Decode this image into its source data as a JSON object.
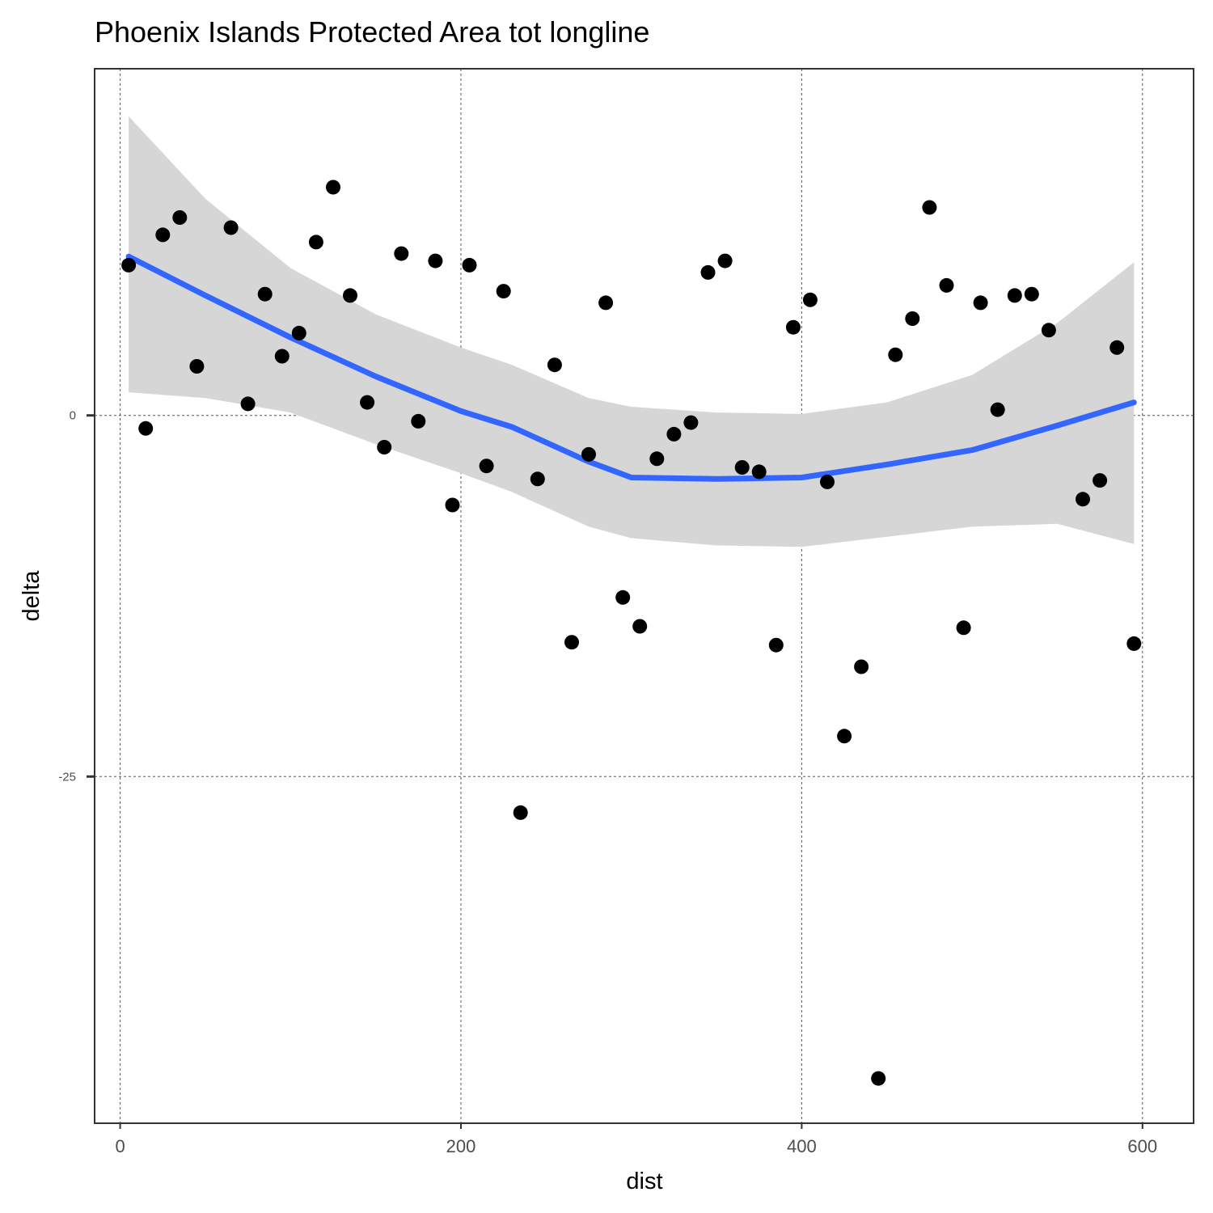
{
  "chart_data": {
    "type": "scatter",
    "title": "Phoenix Islands Protected Area tot longline",
    "xlabel": "dist",
    "ylabel": "delta",
    "xlim": [
      -15,
      630
    ],
    "ylim": [
      -49,
      24
    ],
    "x_ticks": [
      0,
      200,
      400,
      600
    ],
    "x_tick_labels": [
      "0",
      "200",
      "400",
      "600"
    ],
    "y_ticks": [
      0,
      -25
    ],
    "y_tick_labels": [
      "0",
      "-25"
    ],
    "grid": true,
    "legend": "none",
    "points": [
      {
        "x": 5,
        "y": 10.4
      },
      {
        "x": 15,
        "y": -0.9
      },
      {
        "x": 25,
        "y": 12.5
      },
      {
        "x": 35,
        "y": 13.7
      },
      {
        "x": 45,
        "y": 3.4
      },
      {
        "x": 65,
        "y": 13.0
      },
      {
        "x": 75,
        "y": 0.8
      },
      {
        "x": 85,
        "y": 8.4
      },
      {
        "x": 95,
        "y": 4.1
      },
      {
        "x": 105,
        "y": 5.7
      },
      {
        "x": 115,
        "y": 12.0
      },
      {
        "x": 125,
        "y": 15.8
      },
      {
        "x": 135,
        "y": 8.3
      },
      {
        "x": 145,
        "y": 0.9
      },
      {
        "x": 155,
        "y": -2.2
      },
      {
        "x": 165,
        "y": 11.2
      },
      {
        "x": 175,
        "y": -0.4
      },
      {
        "x": 185,
        "y": 10.7
      },
      {
        "x": 195,
        "y": -6.2
      },
      {
        "x": 205,
        "y": 10.4
      },
      {
        "x": 215,
        "y": -3.5
      },
      {
        "x": 225,
        "y": 8.6
      },
      {
        "x": 235,
        "y": -27.5
      },
      {
        "x": 245,
        "y": -4.4
      },
      {
        "x": 255,
        "y": 3.5
      },
      {
        "x": 265,
        "y": -15.7
      },
      {
        "x": 275,
        "y": -2.7
      },
      {
        "x": 285,
        "y": 7.8
      },
      {
        "x": 295,
        "y": -12.6
      },
      {
        "x": 305,
        "y": -14.6
      },
      {
        "x": 315,
        "y": -3.0
      },
      {
        "x": 325,
        "y": -1.3
      },
      {
        "x": 335,
        "y": -0.5
      },
      {
        "x": 345,
        "y": 9.9
      },
      {
        "x": 355,
        "y": 10.7
      },
      {
        "x": 365,
        "y": -3.6
      },
      {
        "x": 375,
        "y": -3.9
      },
      {
        "x": 385,
        "y": -15.9
      },
      {
        "x": 395,
        "y": 6.1
      },
      {
        "x": 405,
        "y": 8.0
      },
      {
        "x": 415,
        "y": -4.6
      },
      {
        "x": 425,
        "y": -22.2
      },
      {
        "x": 435,
        "y": -17.4
      },
      {
        "x": 445,
        "y": -45.9
      },
      {
        "x": 455,
        "y": 4.2
      },
      {
        "x": 465,
        "y": 6.7
      },
      {
        "x": 475,
        "y": 14.4
      },
      {
        "x": 485,
        "y": 9.0
      },
      {
        "x": 495,
        "y": -14.7
      },
      {
        "x": 505,
        "y": 7.8
      },
      {
        "x": 515,
        "y": 0.4
      },
      {
        "x": 525,
        "y": 8.3
      },
      {
        "x": 535,
        "y": 8.4
      },
      {
        "x": 545,
        "y": 5.9
      },
      {
        "x": 565,
        "y": -5.8
      },
      {
        "x": 575,
        "y": -4.5
      },
      {
        "x": 585,
        "y": 4.7
      },
      {
        "x": 595,
        "y": -15.8
      }
    ],
    "smooth": {
      "color": "#3366ff",
      "band_color": "#d6d6d6",
      "x": [
        5,
        50,
        100,
        150,
        200,
        230,
        275,
        300,
        350,
        400,
        450,
        500,
        550,
        595
      ],
      "y": [
        11.0,
        8.3,
        5.4,
        2.7,
        0.3,
        -0.8,
        -3.2,
        -4.3,
        -4.4,
        -4.3,
        -3.4,
        -2.4,
        -0.7,
        0.9
      ],
      "lower": [
        1.6,
        1.2,
        0.2,
        -2.0,
        -4.0,
        -5.3,
        -7.7,
        -8.5,
        -9.0,
        -9.1,
        -8.4,
        -7.7,
        -7.5,
        -8.9
      ],
      "upper": [
        20.7,
        15.0,
        10.2,
        7.0,
        4.7,
        3.5,
        1.2,
        0.6,
        0.2,
        0.1,
        0.9,
        2.8,
        6.4,
        10.6
      ]
    }
  }
}
